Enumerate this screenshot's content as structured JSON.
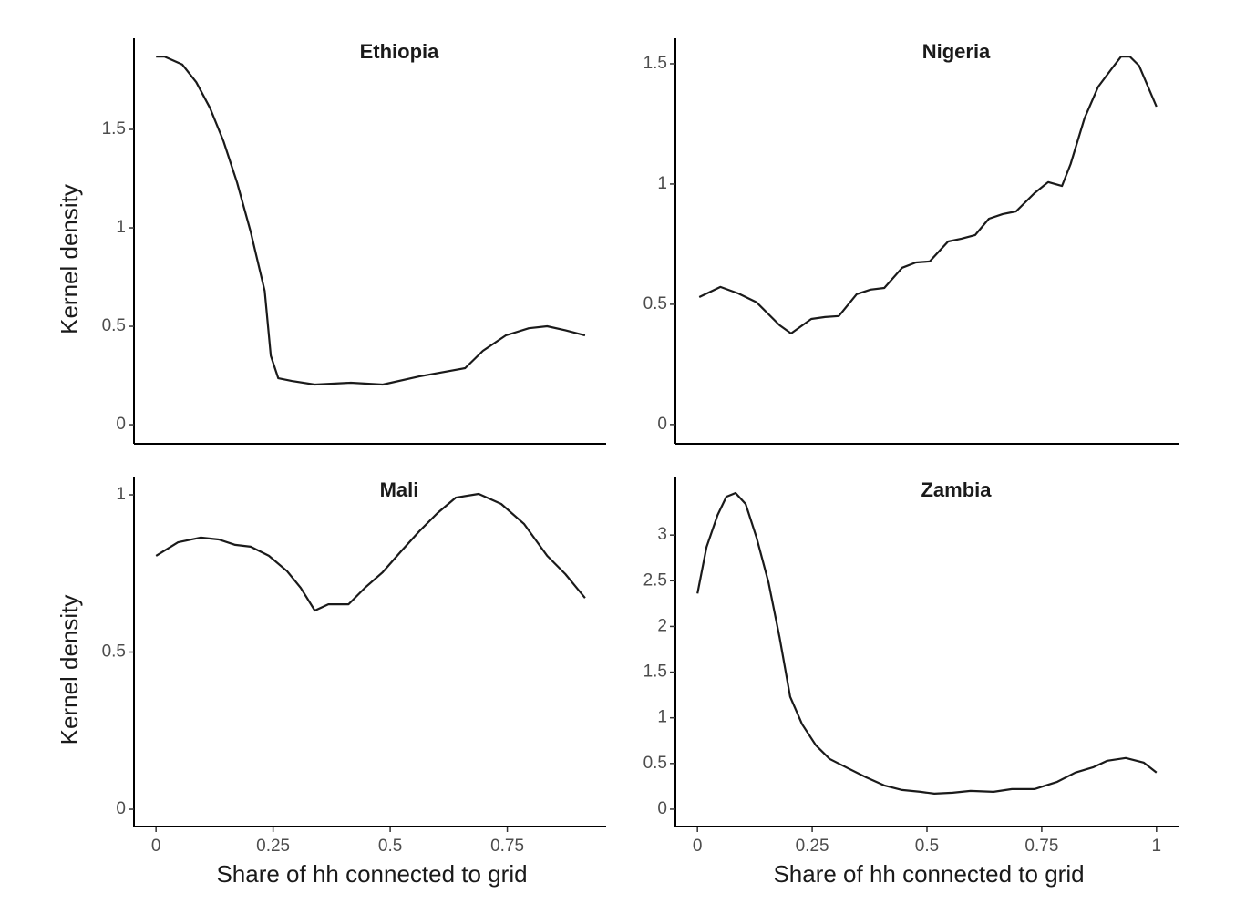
{
  "chart_data": [
    {
      "type": "line",
      "title": "Ethiopia",
      "ylabel": "Kernel density",
      "color": "#1a1a1a",
      "x": [
        0,
        0.018,
        0.056,
        0.086,
        0.115,
        0.144,
        0.173,
        0.202,
        0.232,
        0.245,
        0.261,
        0.29,
        0.339,
        0.416,
        0.484,
        0.562,
        0.66,
        0.698,
        0.747,
        0.796,
        0.835,
        0.874,
        0.916
      ],
      "values": [
        1.87,
        1.87,
        1.83,
        1.74,
        1.61,
        1.44,
        1.23,
        0.98,
        0.68,
        0.35,
        0.236,
        0.222,
        0.204,
        0.213,
        0.204,
        0.245,
        0.287,
        0.375,
        0.454,
        0.49,
        0.5,
        0.48,
        0.454
      ],
      "xlim": [
        -0.047,
        0.961
      ],
      "ylim": [
        -0.097,
        1.963
      ],
      "yticks": [
        0,
        0.5,
        1,
        1.5
      ]
    },
    {
      "type": "line",
      "title": "Nigeria",
      "color": "#1a1a1a",
      "x": [
        0.004,
        0.05,
        0.089,
        0.129,
        0.179,
        0.204,
        0.248,
        0.278,
        0.308,
        0.347,
        0.377,
        0.407,
        0.446,
        0.476,
        0.506,
        0.546,
        0.575,
        0.605,
        0.635,
        0.665,
        0.694,
        0.734,
        0.764,
        0.794,
        0.813,
        0.843,
        0.873,
        0.903,
        0.923,
        0.942,
        0.962,
        1.0
      ],
      "values": [
        0.53,
        0.572,
        0.545,
        0.508,
        0.413,
        0.379,
        0.439,
        0.447,
        0.451,
        0.542,
        0.561,
        0.568,
        0.652,
        0.674,
        0.678,
        0.761,
        0.773,
        0.788,
        0.856,
        0.875,
        0.886,
        0.962,
        1.008,
        0.992,
        1.083,
        1.273,
        1.405,
        1.481,
        1.53,
        1.53,
        1.492,
        1.322
      ],
      "xlim": [
        -0.048,
        1.048
      ],
      "ylim": [
        -0.08,
        1.606
      ],
      "yticks": [
        0,
        0.5,
        1,
        1.5
      ]
    },
    {
      "type": "line",
      "title": "Mali",
      "xlabel": "Share of hh connected to grid",
      "ylabel": "Kernel density",
      "color": "#1a1a1a",
      "x": [
        0,
        0.047,
        0.095,
        0.134,
        0.169,
        0.202,
        0.241,
        0.28,
        0.309,
        0.339,
        0.368,
        0.411,
        0.446,
        0.484,
        0.523,
        0.562,
        0.601,
        0.64,
        0.689,
        0.737,
        0.786,
        0.835,
        0.874,
        0.916
      ],
      "values": [
        0.806,
        0.849,
        0.864,
        0.858,
        0.841,
        0.835,
        0.806,
        0.757,
        0.704,
        0.632,
        0.652,
        0.652,
        0.704,
        0.754,
        0.82,
        0.884,
        0.942,
        0.991,
        1.003,
        0.971,
        0.907,
        0.806,
        0.748,
        0.672
      ],
      "xlim": [
        -0.047,
        0.961
      ],
      "ylim": [
        -0.055,
        1.058
      ],
      "xticks": [
        0,
        0.25,
        0.5,
        0.75
      ],
      "yticks": [
        0,
        0.5,
        1
      ]
    },
    {
      "type": "line",
      "title": "Zambia",
      "xlabel": "Share of hh connected to grid",
      "color": "#1a1a1a",
      "x": [
        0,
        0.02,
        0.044,
        0.063,
        0.083,
        0.105,
        0.129,
        0.155,
        0.179,
        0.202,
        0.228,
        0.258,
        0.288,
        0.327,
        0.367,
        0.407,
        0.446,
        0.486,
        0.516,
        0.556,
        0.595,
        0.645,
        0.685,
        0.734,
        0.784,
        0.823,
        0.863,
        0.893,
        0.933,
        0.972,
        1.0
      ],
      "values": [
        2.36,
        2.87,
        3.22,
        3.42,
        3.46,
        3.34,
        2.97,
        2.48,
        1.88,
        1.23,
        0.93,
        0.7,
        0.55,
        0.45,
        0.35,
        0.26,
        0.21,
        0.19,
        0.17,
        0.18,
        0.2,
        0.19,
        0.22,
        0.22,
        0.3,
        0.4,
        0.46,
        0.53,
        0.56,
        0.51,
        0.4
      ],
      "xlim": [
        -0.048,
        1.048
      ],
      "ylim": [
        -0.19,
        3.64
      ],
      "xticks": [
        0,
        0.25,
        0.5,
        0.75,
        1
      ],
      "yticks": [
        0,
        0.5,
        1,
        1.5,
        2,
        2.5,
        3
      ]
    }
  ]
}
